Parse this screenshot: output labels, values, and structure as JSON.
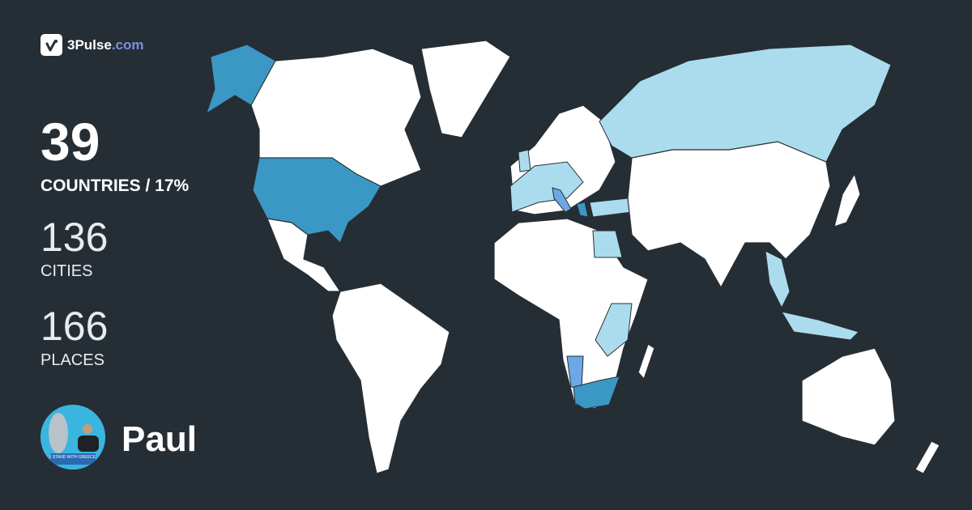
{
  "brand": {
    "name": "3Pulse",
    "domain": ".com",
    "icon": "pulse-check-icon"
  },
  "stats": {
    "countries": {
      "value": "39",
      "label": "COUNTRIES / 17%"
    },
    "cities": {
      "value": "136",
      "label": "CITIES"
    },
    "places": {
      "value": "166",
      "label": "PLACES"
    }
  },
  "user": {
    "name": "Paul",
    "avatar_caption": "I STAND WITH GREECE"
  },
  "colors": {
    "background": "#262e35",
    "land": "#ffffff",
    "visited_light": "#abdcee",
    "visited_dark": "#3b97c4",
    "visited_mid": "#6da8e6",
    "brand_accent": "#7b8fe0"
  }
}
